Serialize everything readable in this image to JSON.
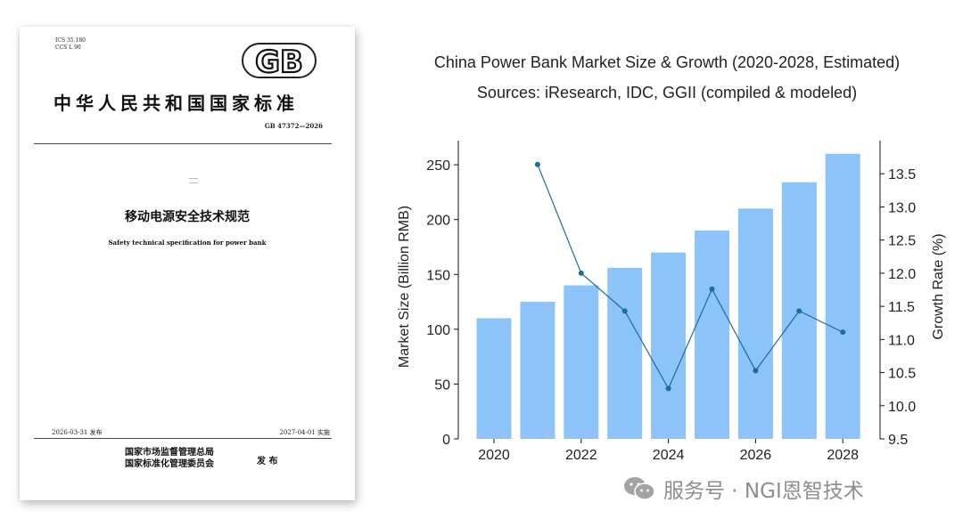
{
  "document": {
    "ics": "ICS 35.180",
    "ccs": "CCS L 90",
    "logo": "GB",
    "standard_title": "中华人民共和国国家标准",
    "standard_number": "GB 47372—2026",
    "title_cn": "移动电源安全技术规范",
    "title_en": "Safety technical specification for power bank",
    "publish_date": "2026-03-31 发布",
    "implement_date": "2027-04-01 实施",
    "issuer_1": "国家市场监督管理总局",
    "issuer_2": "国家标准化管理委员会",
    "issue_word": "发 布"
  },
  "chart_data": {
    "type": "bar",
    "title": "China Power Bank Market Size & Growth (2020-2028, Estimated)",
    "subtitle": "Sources: iResearch, IDC, GGII (compiled & modeled)",
    "x": [
      2020,
      2021,
      2022,
      2023,
      2024,
      2025,
      2026,
      2027,
      2028
    ],
    "x_ticks": [
      "2020",
      "2022",
      "2024",
      "2026",
      "2028"
    ],
    "series": [
      {
        "type": "bar",
        "axis": "left",
        "values": [
          110,
          125,
          140,
          156,
          170,
          190,
          210,
          234,
          260
        ],
        "color": "#8cc3f8"
      },
      {
        "type": "line",
        "axis": "right",
        "values": [
          null,
          13.64,
          12.0,
          11.43,
          10.26,
          11.76,
          10.53,
          11.43,
          11.11
        ],
        "color": "#1b6e96"
      }
    ],
    "ylabel": "Market Size (Billion RMB)",
    "ylim": [
      0,
      272
    ],
    "yticks": [
      "0",
      "50",
      "100",
      "150",
      "200",
      "250"
    ],
    "y2label": "Growth Rate (%)",
    "y2lim": [
      9.5,
      14.0
    ],
    "y2ticks": [
      "9.5",
      "10.0",
      "10.5",
      "11.0",
      "11.5",
      "12.0",
      "12.5",
      "13.0",
      "13.5"
    ],
    "grid": false
  },
  "watermark": {
    "text": "服务号 · NGI恩智技术",
    "icon": "wechat-icon"
  }
}
